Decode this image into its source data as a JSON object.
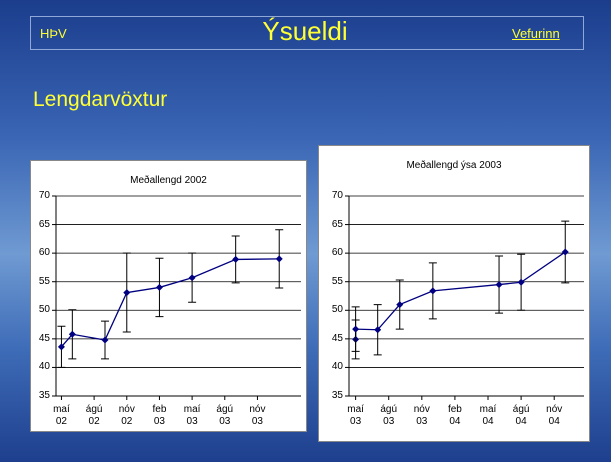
{
  "header": {
    "left": "HÞV",
    "title": "Ýsueldi",
    "link": "Vefurinn"
  },
  "heading": "Lengdarvöxtur",
  "chart_data": [
    {
      "type": "line",
      "title": "Meðallengd 2002",
      "x": [
        0,
        1,
        4,
        6,
        9,
        12,
        16,
        20
      ],
      "series": [
        {
          "color": "#000080",
          "values": [
            43.6,
            45.8,
            44.8,
            53.1,
            54,
            55.7,
            58.9,
            59
          ],
          "errors": [
            3.6,
            4.3,
            3.3,
            6.9,
            5.1,
            4.3,
            4.1,
            5.1
          ]
        }
      ],
      "xlim": [
        -0.5,
        22
      ],
      "xticks": [
        {
          "value": 0,
          "label": "maí 02"
        },
        {
          "value": 3,
          "label": "ágú 02"
        },
        {
          "value": 6,
          "label": "nóv 02"
        },
        {
          "value": 9,
          "label": "feb 03"
        },
        {
          "value": 12,
          "label": "maí 03"
        },
        {
          "value": 15,
          "label": "ágú 03"
        },
        {
          "value": 18,
          "label": "nóv 03"
        }
      ],
      "ylim": [
        35,
        70
      ],
      "yticks": [
        35,
        40,
        45,
        50,
        55,
        60,
        65,
        70
      ],
      "grid": true
    },
    {
      "type": "line",
      "title": "Meðallengd ýsa 2003",
      "x": [
        0,
        0,
        2,
        4,
        7,
        13,
        15,
        19
      ],
      "series": [
        {
          "color": "#000080",
          "values": [
            44.9,
            46.7,
            46.6,
            51,
            53.4,
            54.5,
            54.9,
            60.2
          ],
          "errors": [
            3.4,
            3.9,
            4.4,
            4.3,
            4.9,
            5,
            4.9,
            5.4
          ]
        }
      ],
      "xlim": [
        -0.6,
        20.7
      ],
      "xticks": [
        {
          "value": 0,
          "label": "maí 03"
        },
        {
          "value": 3,
          "label": "ágú 03"
        },
        {
          "value": 6,
          "label": "nóv 03"
        },
        {
          "value": 9,
          "label": "feb 04"
        },
        {
          "value": 12,
          "label": "maí 04"
        },
        {
          "value": 15,
          "label": "ágú 04"
        },
        {
          "value": 18,
          "label": "nóv 04"
        }
      ],
      "ylim": [
        35,
        70
      ],
      "yticks": [
        35,
        40,
        45,
        50,
        55,
        60,
        65,
        70
      ],
      "grid": true
    }
  ]
}
